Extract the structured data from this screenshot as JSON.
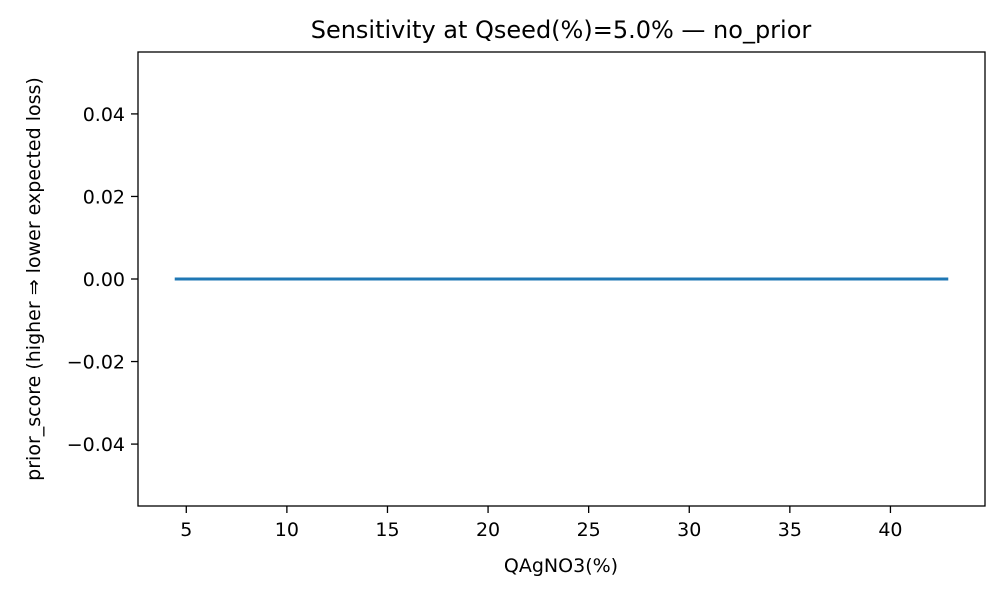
{
  "chart_data": {
    "type": "line",
    "title": "Sensitivity at Qseed(%)=5.0% — no_prior",
    "xlabel": "QAgNO3(%)",
    "ylabel": "prior_score (higher ⇒ lower expected loss)",
    "xlim": [
      2.6,
      44.7
    ],
    "ylim": [
      -0.055,
      0.055
    ],
    "x_ticks": [
      5,
      10,
      15,
      20,
      25,
      30,
      35,
      40
    ],
    "x_tick_labels": [
      "5",
      "10",
      "15",
      "20",
      "25",
      "30",
      "35",
      "40"
    ],
    "y_ticks": [
      -0.04,
      -0.02,
      0.0,
      0.02,
      0.04
    ],
    "y_tick_labels": [
      "−0.04",
      "−0.02",
      "0.00",
      "0.02",
      "0.04"
    ],
    "grid": false,
    "series": [
      {
        "color": "#1f77b4",
        "x": [
          4.5,
          10,
          15,
          20,
          25,
          30,
          35,
          40,
          42.8
        ],
        "y": [
          0,
          0,
          0,
          0,
          0,
          0,
          0,
          0,
          0
        ]
      }
    ]
  }
}
